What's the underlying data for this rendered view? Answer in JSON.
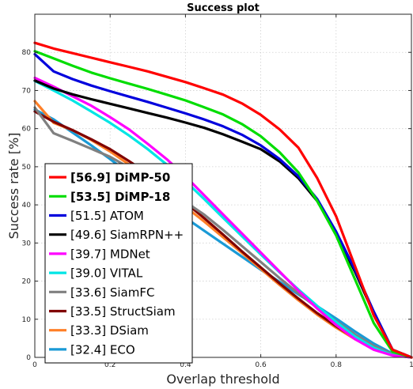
{
  "chart_data": {
    "type": "line",
    "title": "Success plot",
    "xlabel": "Overlap threshold",
    "ylabel": "Success rate [%]",
    "xlim": [
      0,
      1
    ],
    "ylim": [
      0,
      90
    ],
    "xticks": [
      0,
      0.2,
      0.4,
      0.6,
      0.8,
      1
    ],
    "xtick_labels": [
      "0",
      "0.2",
      "0.4",
      "0.6",
      "0.8",
      "1"
    ],
    "yticks": [
      0,
      10,
      20,
      30,
      40,
      50,
      60,
      70,
      80,
      90
    ],
    "ytick_labels": [
      "0",
      "10",
      "20",
      "30",
      "40",
      "50",
      "60",
      "70",
      "80",
      ""
    ],
    "grid": true,
    "legend_position": "lower-left",
    "x": [
      0,
      0.05,
      0.1,
      0.15,
      0.2,
      0.25,
      0.3,
      0.35,
      0.4,
      0.45,
      0.5,
      0.55,
      0.6,
      0.65,
      0.7,
      0.75,
      0.8,
      0.85,
      0.9,
      0.95,
      1.0
    ],
    "series": [
      {
        "name": "[56.9] DiMP-50",
        "score": "[56.9]",
        "label": "DiMP-50",
        "bold": true,
        "color": "#ff0000",
        "values": [
          82.5,
          81.0,
          79.8,
          78.6,
          77.4,
          76.2,
          75.0,
          73.6,
          72.2,
          70.6,
          68.9,
          66.6,
          63.6,
          59.8,
          55.0,
          47.0,
          37.0,
          24.0,
          11.0,
          2.0,
          0.0
        ]
      },
      {
        "name": "[53.5] DiMP-18",
        "score": "[53.5]",
        "label": "DiMP-18",
        "bold": true,
        "color": "#00dd00",
        "values": [
          80.3,
          78.4,
          76.5,
          74.7,
          73.2,
          71.8,
          70.4,
          68.9,
          67.4,
          65.6,
          63.7,
          61.2,
          58.0,
          53.8,
          48.5,
          41.0,
          32.0,
          20.5,
          9.0,
          1.5,
          0.0
        ]
      },
      {
        "name": "[51.5] ATOM",
        "score": "[51.5]",
        "label": "ATOM",
        "bold": false,
        "color": "#0000dd",
        "values": [
          79.5,
          75.0,
          73.0,
          71.3,
          69.8,
          68.4,
          67.0,
          65.5,
          64.0,
          62.4,
          60.6,
          58.4,
          55.6,
          52.0,
          47.5,
          41.5,
          33.0,
          23.0,
          12.0,
          2.0,
          0.0
        ]
      },
      {
        "name": "[49.6] SiamRPN++",
        "score": "[49.6]",
        "label": "SiamRPN++",
        "bold": false,
        "color": "#000000",
        "values": [
          72.6,
          70.5,
          69.0,
          67.7,
          66.5,
          65.3,
          64.1,
          62.9,
          61.6,
          60.2,
          58.5,
          56.6,
          54.6,
          51.4,
          47.0,
          41.0,
          32.5,
          22.5,
          11.5,
          2.0,
          0.0
        ]
      },
      {
        "name": "[39.7] MDNet",
        "score": "[39.7]",
        "label": "MDNet",
        "bold": false,
        "color": "#ff00ff",
        "values": [
          73.3,
          71.0,
          68.5,
          66.0,
          63.0,
          59.8,
          56.0,
          52.0,
          47.5,
          42.5,
          37.5,
          32.5,
          27.5,
          22.5,
          17.5,
          12.8,
          8.5,
          4.8,
          2.0,
          0.5,
          0.0
        ]
      },
      {
        "name": "[39.0] VITAL",
        "score": "[39.0]",
        "label": "VITAL",
        "bold": false,
        "color": "#00e5e5",
        "values": [
          72.5,
          70.0,
          67.4,
          64.5,
          61.5,
          58.2,
          54.6,
          50.6,
          46.2,
          41.5,
          36.6,
          31.8,
          27.0,
          22.3,
          17.8,
          13.5,
          9.3,
          5.5,
          2.5,
          0.6,
          0.0
        ]
      },
      {
        "name": "[33.6] SiamFC",
        "score": "[33.6]",
        "label": "SiamFC",
        "bold": false,
        "color": "#808080",
        "values": [
          65.5,
          58.8,
          56.8,
          54.7,
          52.6,
          49.8,
          46.6,
          43.6,
          40.8,
          37.4,
          33.4,
          29.2,
          25.0,
          20.8,
          16.8,
          13.0,
          9.5,
          6.0,
          3.0,
          0.8,
          0.0
        ]
      },
      {
        "name": "[33.5] StructSiam",
        "score": "[33.5]",
        "label": "StructSiam",
        "bold": false,
        "color": "#800000",
        "values": [
          64.5,
          61.8,
          59.6,
          57.2,
          54.6,
          51.5,
          48.2,
          44.6,
          40.6,
          36.5,
          32.2,
          27.8,
          23.6,
          19.4,
          15.4,
          11.6,
          8.2,
          5.0,
          2.4,
          0.6,
          0.0
        ]
      },
      {
        "name": "[33.3] DSiam",
        "score": "[33.3]",
        "label": "DSiam",
        "bold": false,
        "color": "#ff7f27",
        "values": [
          67.2,
          61.5,
          59.6,
          57.0,
          54.0,
          50.6,
          47.0,
          43.3,
          39.5,
          35.6,
          31.5,
          27.4,
          23.2,
          19.0,
          15.0,
          11.2,
          7.8,
          4.8,
          2.3,
          0.6,
          0.0
        ]
      },
      {
        "name": "[32.4] ECO",
        "score": "[32.4]",
        "label": "ECO",
        "bold": false,
        "color": "#1a9ad6",
        "values": [
          65.0,
          62.4,
          59.0,
          55.6,
          52.0,
          48.2,
          44.4,
          40.4,
          36.6,
          33.2,
          29.8,
          26.4,
          23.0,
          19.8,
          16.5,
          13.4,
          10.2,
          6.8,
          3.6,
          1.0,
          0.0
        ]
      }
    ]
  }
}
